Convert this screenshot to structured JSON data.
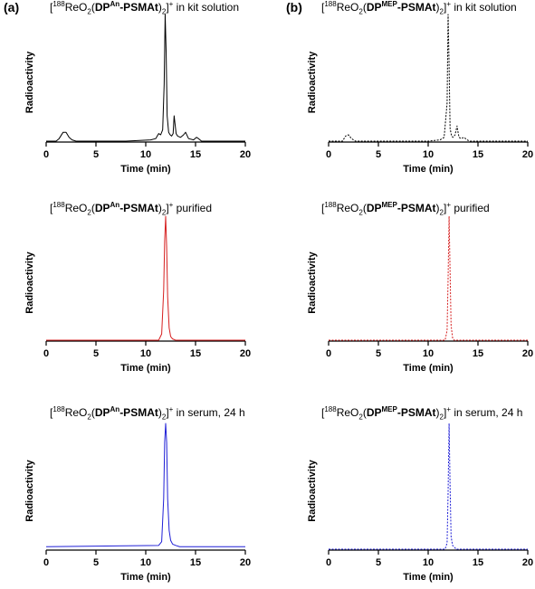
{
  "panel_labels": {
    "a": "(a)",
    "b": "(b)"
  },
  "title_parts": {
    "bracket_open": "[",
    "isotope": "188",
    "reo": "ReO",
    "sub2": "2",
    "paren_open": "(",
    "dp": "DP",
    "ligand_a": "An",
    "ligand_b": "MEP",
    "psmat": "-PSMAt",
    "paren_close": ")",
    "bracket_close": "]",
    "charge": "+"
  },
  "conditions": [
    " in kit solution",
    " purified",
    " in serum, 24 h"
  ],
  "axis_text": {
    "xlabel": "Time (min)",
    "ylabel": "Radioactivity",
    "x_ticks": [
      "0",
      "5",
      "10",
      "15",
      "20"
    ]
  },
  "colors": {
    "kit": "#000000",
    "purified": "#d62020",
    "serum": "#1f1fd6"
  },
  "chart_data": [
    {
      "type": "line",
      "panel": "(a)",
      "row": 1,
      "style": "solid",
      "color": "#000000",
      "xlabel": "Time (min)",
      "ylabel": "Radioactivity",
      "xlim": [
        0,
        20
      ],
      "ylim": [
        0,
        1.0
      ],
      "x": [
        0,
        1.0,
        1.3,
        1.7,
        2.0,
        2.3,
        2.6,
        3,
        8,
        10.5,
        11.0,
        11.3,
        11.5,
        11.7,
        11.85,
        11.95,
        12.05,
        12.15,
        12.3,
        12.45,
        12.6,
        12.75,
        12.85,
        12.95,
        13.05,
        13.2,
        13.5,
        13.8,
        14.0,
        14.3,
        14.8,
        15.1,
        15.3,
        15.6,
        16,
        20
      ],
      "y": [
        0,
        0,
        0.02,
        0.07,
        0.07,
        0.03,
        0.01,
        0,
        0,
        0.01,
        0.02,
        0.06,
        0.05,
        0.09,
        0.45,
        1.0,
        0.7,
        0.2,
        0.07,
        0.05,
        0.04,
        0.06,
        0.2,
        0.13,
        0.06,
        0.04,
        0.03,
        0.05,
        0.07,
        0.02,
        0.01,
        0.03,
        0.02,
        0.0,
        0,
        0
      ]
    },
    {
      "type": "line",
      "panel": "(a)",
      "row": 2,
      "style": "solid",
      "color": "#d62020",
      "xlabel": "Time (min)",
      "ylabel": "Radioactivity",
      "xlim": [
        0,
        20
      ],
      "ylim": [
        0,
        1.0
      ],
      "x": [
        0,
        11.3,
        11.6,
        11.8,
        11.9,
        12.0,
        12.1,
        12.2,
        12.35,
        12.5,
        12.7,
        13.0,
        20
      ],
      "y": [
        0,
        0,
        0.05,
        0.4,
        0.8,
        1.0,
        0.75,
        0.35,
        0.1,
        0.03,
        0.01,
        0,
        0
      ]
    },
    {
      "type": "line",
      "panel": "(a)",
      "row": 3,
      "style": "solid",
      "color": "#1f1fd6",
      "xlabel": "Time (min)",
      "ylabel": "Radioactivity",
      "xlim": [
        0,
        20
      ],
      "ylim": [
        0,
        1.0
      ],
      "x": [
        0,
        11.3,
        11.6,
        11.8,
        11.9,
        12.0,
        12.1,
        12.2,
        12.35,
        12.5,
        12.7,
        13.0,
        13.4,
        20
      ],
      "y": [
        0.02,
        0.03,
        0.06,
        0.4,
        0.85,
        1.0,
        0.85,
        0.4,
        0.15,
        0.07,
        0.04,
        0.03,
        0.02,
        0.02
      ]
    },
    {
      "type": "line",
      "panel": "(b)",
      "row": 1,
      "style": "dotted",
      "color": "#000000",
      "xlabel": "Time (min)",
      "ylabel": "Radioactivity",
      "xlim": [
        0,
        20
      ],
      "ylim": [
        0,
        1.0
      ],
      "x": [
        0,
        1.4,
        1.7,
        2.0,
        2.3,
        2.7,
        10,
        11.2,
        11.6,
        11.9,
        12.0,
        12.1,
        12.2,
        12.35,
        12.5,
        12.7,
        12.9,
        13.0,
        13.1,
        13.3,
        13.6,
        13.9,
        14.2,
        20
      ],
      "y": [
        0,
        0,
        0.04,
        0.05,
        0.02,
        0,
        0,
        0.01,
        0.03,
        0.3,
        1.0,
        0.6,
        0.1,
        0.04,
        0.03,
        0.05,
        0.12,
        0.07,
        0.03,
        0.02,
        0.03,
        0.01,
        0,
        0
      ]
    },
    {
      "type": "line",
      "panel": "(b)",
      "row": 2,
      "style": "dotted",
      "color": "#d62020",
      "xlabel": "Time (min)",
      "ylabel": "Radioactivity",
      "xlim": [
        0,
        20
      ],
      "ylim": [
        0,
        1.0
      ],
      "x": [
        0,
        11.7,
        11.9,
        12.0,
        12.1,
        12.2,
        12.3,
        12.45,
        12.6,
        20
      ],
      "y": [
        0,
        0,
        0.08,
        0.5,
        1.0,
        0.55,
        0.12,
        0.02,
        0,
        0
      ]
    },
    {
      "type": "line",
      "panel": "(b)",
      "row": 3,
      "style": "dotted",
      "color": "#1f1fd6",
      "xlabel": "Time (min)",
      "ylabel": "Radioactivity",
      "xlim": [
        0,
        20
      ],
      "ylim": [
        0,
        1.0
      ],
      "x": [
        0,
        11.7,
        11.9,
        12.0,
        12.1,
        12.2,
        12.3,
        12.45,
        12.6,
        12.8,
        20
      ],
      "y": [
        0,
        0,
        0.05,
        0.45,
        1.0,
        0.5,
        0.1,
        0.03,
        0.02,
        0,
        0
      ]
    }
  ]
}
